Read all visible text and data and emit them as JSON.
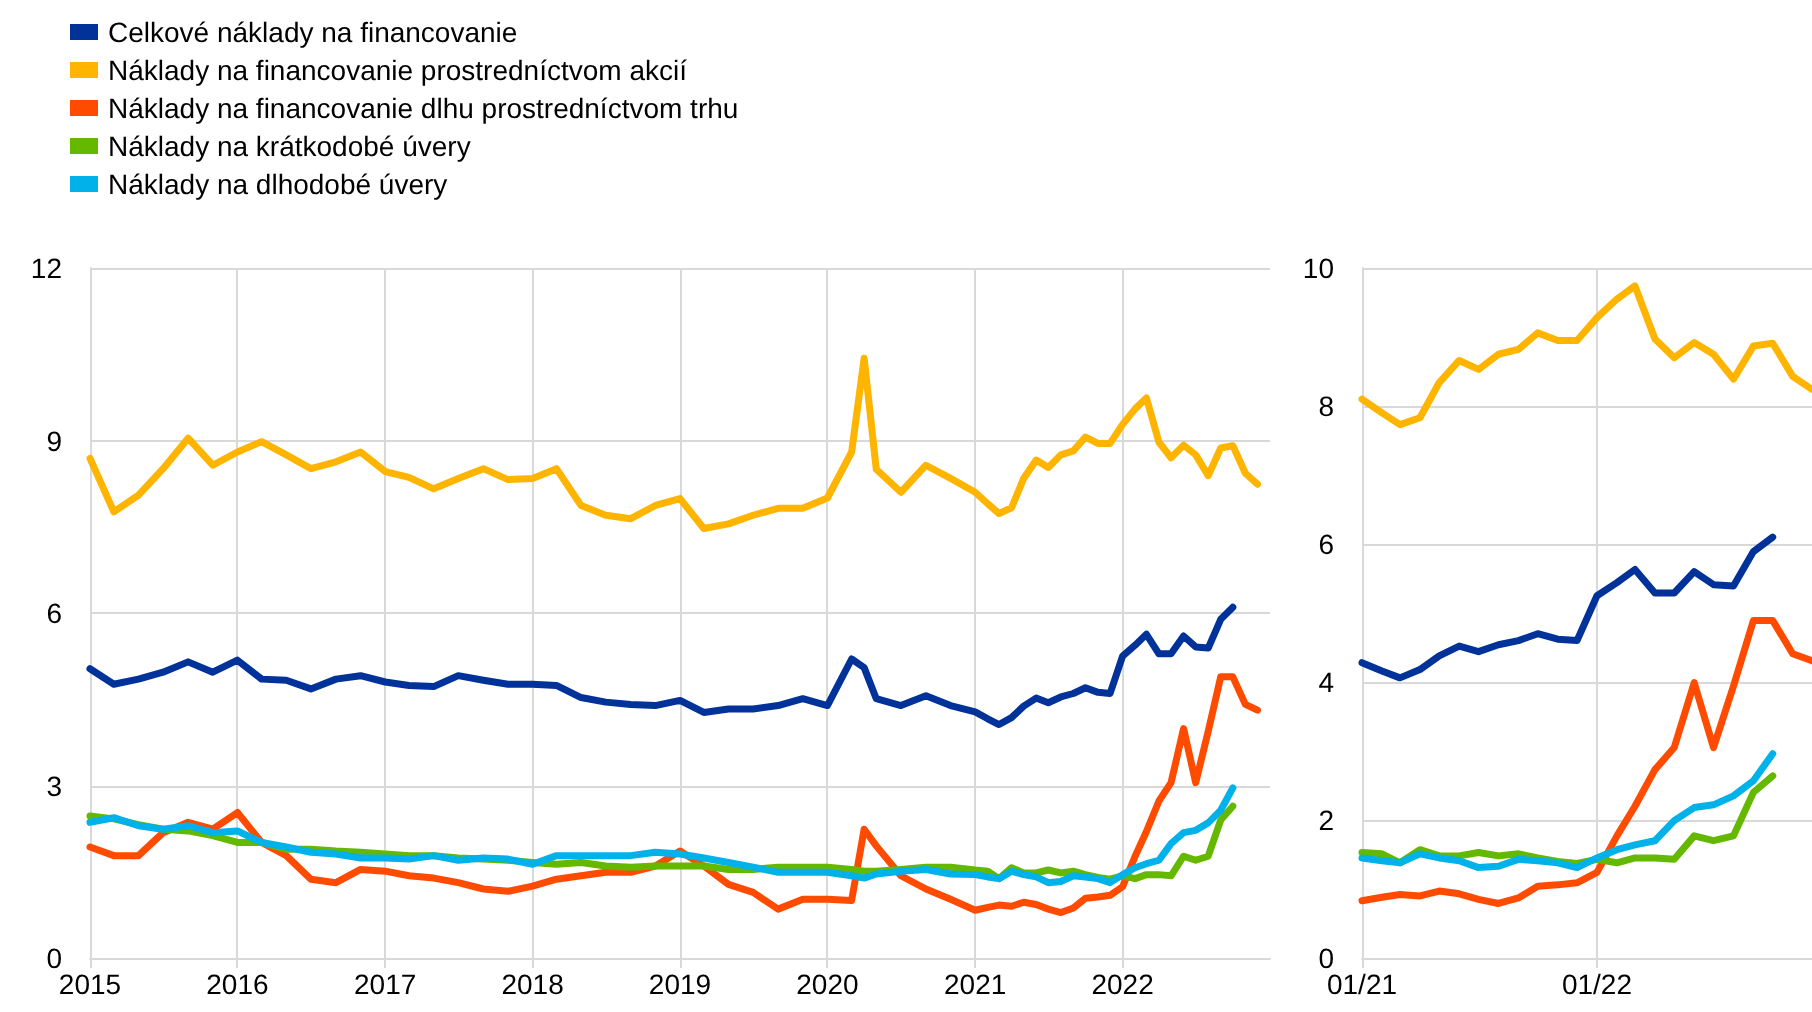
{
  "chart_data": [
    {
      "type": "line",
      "x": [
        "2015-01",
        "2015-03",
        "2015-05",
        "2015-07",
        "2015-09",
        "2015-11",
        "2016-01",
        "2016-03",
        "2016-05",
        "2016-07",
        "2016-09",
        "2016-11",
        "2017-01",
        "2017-03",
        "2017-05",
        "2017-07",
        "2017-09",
        "2017-11",
        "2018-01",
        "2018-03",
        "2018-05",
        "2018-07",
        "2018-09",
        "2018-11",
        "2019-01",
        "2019-03",
        "2019-05",
        "2019-07",
        "2019-09",
        "2019-11",
        "2020-01",
        "2020-03",
        "2020-04",
        "2020-05",
        "2020-07",
        "2020-09",
        "2020-11",
        "2021-01",
        "2021-02",
        "2021-03",
        "2021-04",
        "2021-05",
        "2021-06",
        "2021-07",
        "2021-08",
        "2021-09",
        "2021-10",
        "2021-11",
        "2021-12",
        "2022-01",
        "2022-02",
        "2022-03",
        "2022-04",
        "2022-05",
        "2022-06",
        "2022-07",
        "2022-08",
        "2022-09",
        "2022-10",
        "2022-11",
        "2022-12"
      ],
      "series": [
        {
          "name": "Celkové náklady na financovanie",
          "color": "#003299",
          "values": [
            5.03,
            4.76,
            4.85,
            4.97,
            5.15,
            4.97,
            5.18,
            4.85,
            4.83,
            4.68,
            4.85,
            4.91,
            4.8,
            4.74,
            4.72,
            4.91,
            4.83,
            4.76,
            4.76,
            4.74,
            4.53,
            4.45,
            4.41,
            4.39,
            4.48,
            4.27,
            4.33,
            4.33,
            4.39,
            4.51,
            4.39,
            5.2,
            5.05,
            4.51,
            4.39,
            4.56,
            4.39,
            4.28,
            4.16,
            4.06,
            4.18,
            4.38,
            4.52,
            4.44,
            4.54,
            4.6,
            4.7,
            4.62,
            4.6,
            5.25,
            5.44,
            5.63,
            5.29,
            5.29,
            5.6,
            5.41,
            5.39,
            5.89,
            6.1,
            null,
            null
          ]
        },
        {
          "name": "Náklady na financovanie prostredníctvom akcií",
          "color": "#ffb400",
          "values": [
            8.69,
            7.76,
            8.05,
            8.51,
            9.04,
            8.57,
            8.8,
            8.98,
            8.75,
            8.51,
            8.63,
            8.8,
            8.46,
            8.36,
            8.16,
            8.34,
            8.51,
            8.32,
            8.34,
            8.51,
            7.87,
            7.7,
            7.64,
            7.87,
            7.99,
            7.47,
            7.55,
            7.7,
            7.82,
            7.82,
            8.0,
            8.8,
            10.43,
            8.5,
            8.1,
            8.57,
            8.34,
            8.1,
            7.9,
            7.73,
            7.83,
            8.34,
            8.66,
            8.53,
            8.75,
            8.82,
            9.06,
            8.95,
            8.95,
            9.28,
            9.55,
            9.74,
            8.97,
            8.7,
            8.92,
            8.75,
            8.39,
            8.87,
            8.91,
            8.43,
            8.24
          ]
        },
        {
          "name": "Náklady na financovanie dlhu prostredníctvom trhu",
          "color": "#ff4b00",
          "values": [
            1.93,
            1.78,
            1.78,
            2.18,
            2.36,
            2.24,
            2.53,
            2.01,
            1.78,
            1.37,
            1.31,
            1.54,
            1.51,
            1.43,
            1.39,
            1.31,
            1.2,
            1.16,
            1.25,
            1.37,
            1.43,
            1.49,
            1.49,
            1.6,
            1.86,
            1.6,
            1.28,
            1.14,
            0.85,
            1.02,
            1.02,
            1.0,
            2.24,
            1.95,
            1.43,
            1.2,
            1.02,
            0.83,
            0.88,
            0.92,
            0.9,
            0.97,
            0.93,
            0.85,
            0.79,
            0.87,
            1.04,
            1.06,
            1.09,
            1.24,
            1.77,
            2.2,
            2.73,
            3.05,
            3.99,
            3.05,
            3.94,
            4.89,
            4.89,
            4.41,
            4.31
          ]
        },
        {
          "name": "Náklady na krátkodobé úvery",
          "color": "#65b800",
          "values": [
            2.47,
            2.42,
            2.32,
            2.24,
            2.21,
            2.13,
            2.01,
            2.01,
            1.89,
            1.89,
            1.86,
            1.84,
            1.81,
            1.78,
            1.78,
            1.74,
            1.72,
            1.7,
            1.66,
            1.63,
            1.66,
            1.6,
            1.58,
            1.6,
            1.6,
            1.6,
            1.54,
            1.54,
            1.58,
            1.58,
            1.58,
            1.54,
            1.51,
            1.51,
            1.54,
            1.58,
            1.58,
            1.53,
            1.51,
            1.38,
            1.57,
            1.48,
            1.48,
            1.53,
            1.48,
            1.51,
            1.45,
            1.4,
            1.37,
            1.43,
            1.38,
            1.45,
            1.45,
            1.43,
            1.77,
            1.7,
            1.77,
            2.4,
            2.64,
            null,
            null
          ]
        },
        {
          "name": "Náklady na dlhodobé úvery",
          "color": "#00b1ea",
          "values": [
            2.36,
            2.44,
            2.3,
            2.24,
            2.3,
            2.18,
            2.21,
            2.01,
            1.93,
            1.84,
            1.81,
            1.74,
            1.74,
            1.72,
            1.78,
            1.7,
            1.74,
            1.72,
            1.63,
            1.78,
            1.78,
            1.78,
            1.78,
            1.84,
            1.81,
            1.74,
            1.66,
            1.58,
            1.49,
            1.49,
            1.49,
            1.43,
            1.39,
            1.46,
            1.51,
            1.54,
            1.46,
            1.45,
            1.41,
            1.38,
            1.51,
            1.45,
            1.41,
            1.31,
            1.33,
            1.43,
            1.41,
            1.38,
            1.31,
            1.45,
            1.57,
            1.64,
            1.7,
            1.99,
            2.18,
            2.22,
            2.35,
            2.57,
            2.96,
            null,
            null
          ]
        }
      ],
      "xlim": [
        "2015-01",
        "2023-01"
      ],
      "xticks": [
        "2015",
        "2016",
        "2017",
        "2018",
        "2019",
        "2020",
        "2021",
        "2022"
      ],
      "ylim": [
        0,
        12
      ],
      "yticks": [
        0,
        3,
        6,
        9,
        12
      ],
      "grid": true,
      "legend": "top left",
      "marker": "none",
      "line_style": "solid"
    },
    {
      "type": "line",
      "x": [
        "2021-01",
        "2021-02",
        "2021-03",
        "2021-04",
        "2021-05",
        "2021-06",
        "2021-07",
        "2021-08",
        "2021-09",
        "2021-10",
        "2021-11",
        "2021-12",
        "2022-01",
        "2022-02",
        "2022-03",
        "2022-04",
        "2022-05",
        "2022-06",
        "2022-07",
        "2022-08",
        "2022-09",
        "2022-10",
        "2022-11",
        "2022-12"
      ],
      "series": [
        {
          "color": "#003299",
          "values": [
            4.28,
            4.16,
            4.06,
            4.18,
            4.38,
            4.52,
            4.44,
            4.54,
            4.6,
            4.7,
            4.62,
            4.6,
            5.25,
            5.44,
            5.63,
            5.29,
            5.29,
            5.6,
            5.41,
            5.39,
            5.89,
            6.1,
            null,
            null
          ]
        },
        {
          "color": "#ffb400",
          "values": [
            8.1,
            7.9,
            7.73,
            7.83,
            8.34,
            8.66,
            8.53,
            8.75,
            8.82,
            9.06,
            8.95,
            8.95,
            9.28,
            9.55,
            9.74,
            8.97,
            8.7,
            8.92,
            8.75,
            8.39,
            8.87,
            8.91,
            8.43,
            8.24
          ]
        },
        {
          "color": "#ff4b00",
          "values": [
            0.83,
            0.88,
            0.92,
            0.9,
            0.97,
            0.93,
            0.85,
            0.79,
            0.87,
            1.04,
            1.06,
            1.09,
            1.24,
            1.77,
            2.2,
            2.73,
            3.05,
            3.99,
            3.05,
            3.94,
            4.89,
            4.89,
            4.41,
            4.31
          ]
        },
        {
          "color": "#65b800",
          "values": [
            1.53,
            1.51,
            1.38,
            1.57,
            1.48,
            1.48,
            1.53,
            1.48,
            1.51,
            1.45,
            1.4,
            1.37,
            1.43,
            1.38,
            1.45,
            1.45,
            1.43,
            1.77,
            1.7,
            1.77,
            2.4,
            2.64,
            null,
            null
          ]
        },
        {
          "color": "#00b1ea",
          "values": [
            1.45,
            1.41,
            1.38,
            1.51,
            1.45,
            1.41,
            1.31,
            1.33,
            1.43,
            1.41,
            1.38,
            1.31,
            1.45,
            1.57,
            1.64,
            1.7,
            1.99,
            2.18,
            2.22,
            2.35,
            2.57,
            2.96,
            null,
            null
          ]
        }
      ],
      "xlim": [
        "2021-01",
        "2022-12"
      ],
      "xticks": [
        {
          "value": "2021-01",
          "label": "01/21"
        },
        {
          "value": "2022-01",
          "label": "01/22"
        }
      ],
      "ylim": [
        0,
        10
      ],
      "yticks": [
        0,
        2,
        4,
        6,
        8,
        10
      ],
      "grid": true,
      "legend": false,
      "marker": "none",
      "line_style": "solid"
    }
  ]
}
